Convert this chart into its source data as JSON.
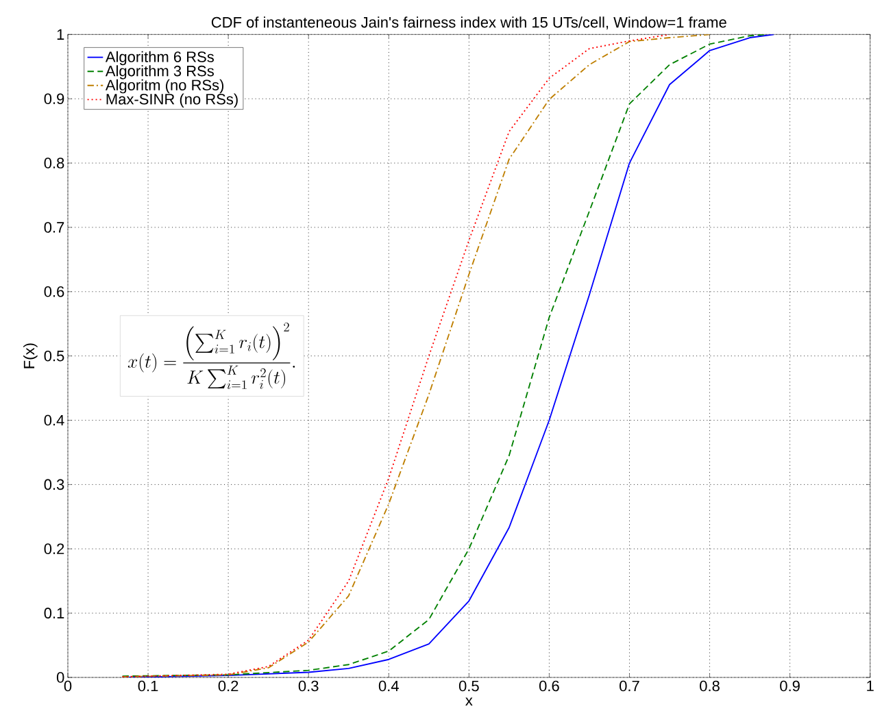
{
  "chart_data": {
    "type": "line",
    "title": "CDF of instanteneous Jain's fairness index with 15 UTs/cell, Window=1 frame",
    "xlabel": "x",
    "ylabel": "F(x)",
    "xlim": [
      0,
      1
    ],
    "ylim": [
      0,
      1
    ],
    "xticks": [
      0,
      0.1,
      0.2,
      0.3,
      0.4,
      0.5,
      0.6,
      0.7,
      0.8,
      0.9,
      1
    ],
    "yticks": [
      0,
      0.1,
      0.2,
      0.3,
      0.4,
      0.5,
      0.6,
      0.7,
      0.8,
      0.9,
      1
    ],
    "grid": true,
    "legend": "top left",
    "annotations": [
      "x(t) = \\frac{\\left(\\sum_{i=1}^{K} r_i(t)\\right)^2}{K \\sum_{i=1}^{K} r_i^2(t)}."
    ],
    "series": [
      {
        "name": "Algorithm 6 RSs",
        "color": "#0000ff",
        "line_style": "solid",
        "x": [
          0.068,
          0.2,
          0.3,
          0.35,
          0.4,
          0.45,
          0.5,
          0.55,
          0.6,
          0.65,
          0.7,
          0.75,
          0.8,
          0.85,
          0.88
        ],
        "values": [
          0.0,
          0.003,
          0.008,
          0.014,
          0.028,
          0.052,
          0.119,
          0.233,
          0.4,
          0.595,
          0.8,
          0.922,
          0.975,
          0.995,
          1.0
        ]
      },
      {
        "name": "Algorithm 3 RSs",
        "color": "#008000",
        "line_style": "dashed",
        "x": [
          0.068,
          0.2,
          0.3,
          0.35,
          0.4,
          0.45,
          0.5,
          0.55,
          0.6,
          0.65,
          0.7,
          0.75,
          0.8,
          0.85,
          0.87
        ],
        "values": [
          0.002,
          0.004,
          0.011,
          0.02,
          0.041,
          0.09,
          0.2,
          0.345,
          0.56,
          0.725,
          0.892,
          0.953,
          0.985,
          0.998,
          1.0
        ]
      },
      {
        "name": "Algoritm (no RSs)",
        "color": "#bf7f00",
        "line_style": "dashdot",
        "x": [
          0.068,
          0.2,
          0.25,
          0.3,
          0.35,
          0.4,
          0.45,
          0.5,
          0.55,
          0.6,
          0.65,
          0.7,
          0.75,
          0.8
        ],
        "values": [
          0.001,
          0.004,
          0.015,
          0.055,
          0.127,
          0.27,
          0.44,
          0.627,
          0.806,
          0.899,
          0.953,
          0.989,
          0.995,
          1.0
        ]
      },
      {
        "name": "Max-SINR (no RSs)",
        "color": "#ff0000",
        "line_style": "dotted",
        "x": [
          0.068,
          0.2,
          0.25,
          0.3,
          0.35,
          0.4,
          0.45,
          0.5,
          0.55,
          0.6,
          0.65,
          0.7,
          0.75
        ],
        "values": [
          0.001,
          0.005,
          0.017,
          0.058,
          0.15,
          0.31,
          0.5,
          0.68,
          0.849,
          0.932,
          0.978,
          0.99,
          1.0
        ]
      }
    ]
  }
}
